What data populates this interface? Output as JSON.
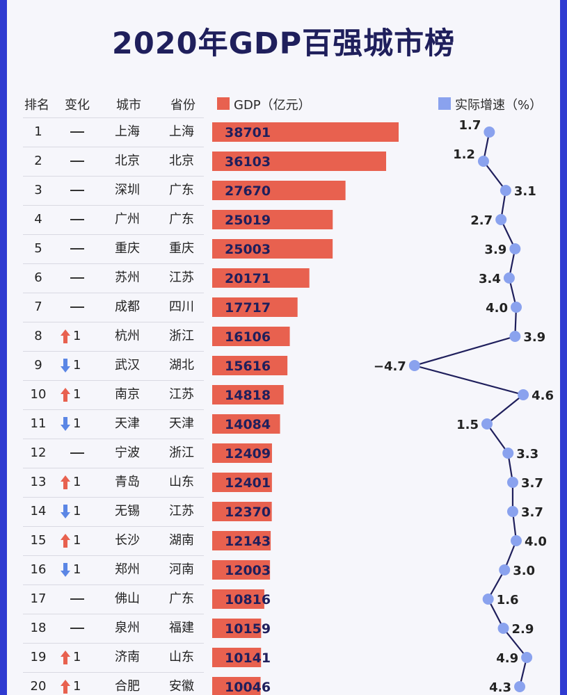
{
  "title": "2020年GDP百强城市榜",
  "headers": {
    "rank": "排名",
    "change": "变化",
    "city": "城市",
    "province": "省份",
    "gdp": "GDP（亿元）",
    "growth": "实际增速（%）"
  },
  "colors": {
    "bar": "#e8614f",
    "dot": "#8aa2ee",
    "line": "#1f1f5c",
    "title": "#1f1f5c",
    "up": "#e8614f",
    "down": "#5b86e5"
  },
  "rows": [
    {
      "rank": "1",
      "change": "none",
      "change_num": "",
      "city": "上海",
      "province": "上海",
      "gdp": "38701",
      "growth": "1.7"
    },
    {
      "rank": "2",
      "change": "none",
      "change_num": "",
      "city": "北京",
      "province": "北京",
      "gdp": "36103",
      "growth": "1.2"
    },
    {
      "rank": "3",
      "change": "none",
      "change_num": "",
      "city": "深圳",
      "province": "广东",
      "gdp": "27670",
      "growth": "3.1"
    },
    {
      "rank": "4",
      "change": "none",
      "change_num": "",
      "city": "广州",
      "province": "广东",
      "gdp": "25019",
      "growth": "2.7"
    },
    {
      "rank": "5",
      "change": "none",
      "change_num": "",
      "city": "重庆",
      "province": "重庆",
      "gdp": "25003",
      "growth": "3.9"
    },
    {
      "rank": "6",
      "change": "none",
      "change_num": "",
      "city": "苏州",
      "province": "江苏",
      "gdp": "20171",
      "growth": "3.4"
    },
    {
      "rank": "7",
      "change": "none",
      "change_num": "",
      "city": "成都",
      "province": "四川",
      "gdp": "17717",
      "growth": "4.0"
    },
    {
      "rank": "8",
      "change": "up",
      "change_num": "1",
      "city": "杭州",
      "province": "浙江",
      "gdp": "16106",
      "growth": "3.9"
    },
    {
      "rank": "9",
      "change": "down",
      "change_num": "1",
      "city": "武汉",
      "province": "湖北",
      "gdp": "15616",
      "growth": "−4.7"
    },
    {
      "rank": "10",
      "change": "up",
      "change_num": "1",
      "city": "南京",
      "province": "江苏",
      "gdp": "14818",
      "growth": "4.6"
    },
    {
      "rank": "11",
      "change": "down",
      "change_num": "1",
      "city": "天津",
      "province": "天津",
      "gdp": "14084",
      "growth": "1.5"
    },
    {
      "rank": "12",
      "change": "none",
      "change_num": "",
      "city": "宁波",
      "province": "浙江",
      "gdp": "12409",
      "growth": "3.3"
    },
    {
      "rank": "13",
      "change": "up",
      "change_num": "1",
      "city": "青岛",
      "province": "山东",
      "gdp": "12401",
      "growth": "3.7"
    },
    {
      "rank": "14",
      "change": "down",
      "change_num": "1",
      "city": "无锡",
      "province": "江苏",
      "gdp": "12370",
      "growth": "3.7"
    },
    {
      "rank": "15",
      "change": "up",
      "change_num": "1",
      "city": "长沙",
      "province": "湖南",
      "gdp": "12143",
      "growth": "4.0"
    },
    {
      "rank": "16",
      "change": "down",
      "change_num": "1",
      "city": "郑州",
      "province": "河南",
      "gdp": "12003",
      "growth": "3.0"
    },
    {
      "rank": "17",
      "change": "none",
      "change_num": "",
      "city": "佛山",
      "province": "广东",
      "gdp": "10816",
      "growth": "1.6"
    },
    {
      "rank": "18",
      "change": "none",
      "change_num": "",
      "city": "泉州",
      "province": "福建",
      "gdp": "10159",
      "growth": "2.9"
    },
    {
      "rank": "19",
      "change": "up",
      "change_num": "1",
      "city": "济南",
      "province": "山东",
      "gdp": "10141",
      "growth": "4.9"
    },
    {
      "rank": "20",
      "change": "up",
      "change_num": "1",
      "city": "合肥",
      "province": "安徽",
      "gdp": "10046",
      "growth": "4.3"
    }
  ],
  "chart_data": [
    {
      "type": "bar",
      "categories": [
        "上海",
        "北京",
        "深圳",
        "广州",
        "重庆",
        "苏州",
        "成都",
        "杭州",
        "武汉",
        "南京",
        "天津",
        "宁波",
        "青岛",
        "无锡",
        "长沙",
        "郑州",
        "佛山",
        "泉州",
        "济南",
        "合肥"
      ],
      "values": [
        38701,
        36103,
        27670,
        25019,
        25003,
        20171,
        17717,
        16106,
        15616,
        14818,
        14084,
        12409,
        12401,
        12370,
        12143,
        12003,
        10816,
        10159,
        10141,
        10046
      ],
      "orientation": "horizontal",
      "series_name": "GDP（亿元）"
    },
    {
      "type": "line",
      "categories": [
        "上海",
        "北京",
        "深圳",
        "广州",
        "重庆",
        "苏州",
        "成都",
        "杭州",
        "武汉",
        "南京",
        "天津",
        "宁波",
        "青岛",
        "无锡",
        "长沙",
        "郑州",
        "佛山",
        "泉州",
        "济南",
        "合肥"
      ],
      "values": [
        1.7,
        1.2,
        3.1,
        2.7,
        3.9,
        3.4,
        4.0,
        3.9,
        -4.7,
        4.6,
        1.5,
        3.3,
        3.7,
        3.7,
        4.0,
        3.0,
        1.6,
        2.9,
        4.9,
        4.3
      ],
      "orientation": "vertical",
      "series_name": "实际增速（%）"
    }
  ]
}
